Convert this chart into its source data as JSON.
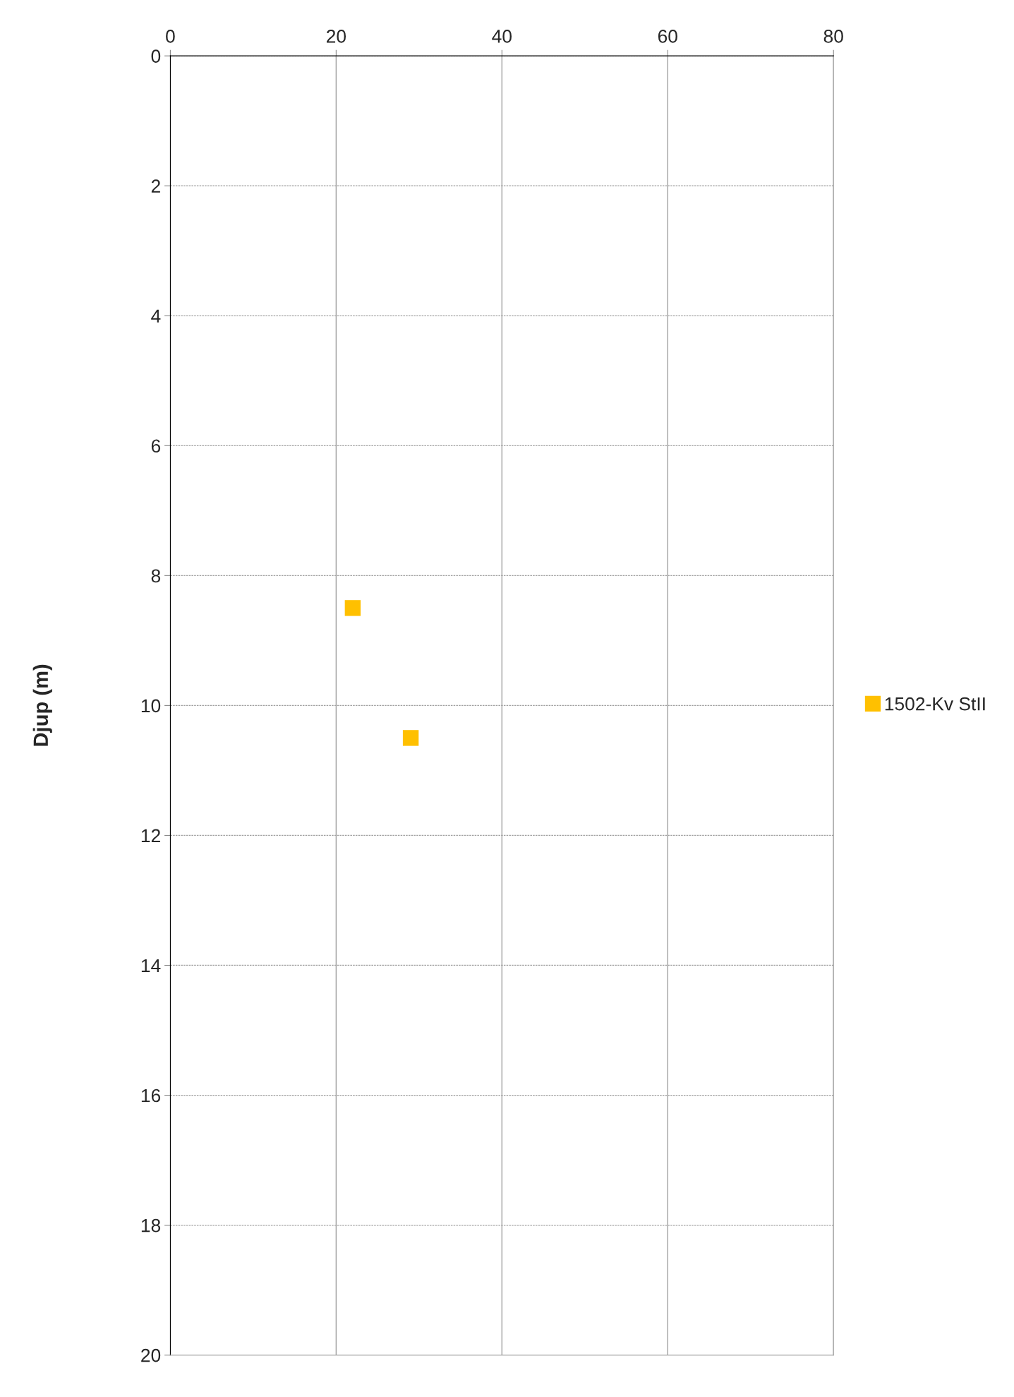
{
  "chart_data": {
    "type": "scatter",
    "ylabel": "Djup (m)",
    "series": [
      {
        "name": "1502-Kv StII",
        "color": "#ffc000",
        "x": [
          22,
          29
        ],
        "values": [
          8.5,
          10.5
        ]
      }
    ],
    "xlim": [
      0,
      80
    ],
    "xticks": [
      0,
      20,
      40,
      60,
      80
    ],
    "ylim": [
      20,
      0
    ],
    "yticks": [
      0,
      2,
      4,
      6,
      8,
      10,
      12,
      14,
      16,
      18,
      20
    ],
    "grid": true,
    "legend": "right",
    "marker": "square"
  }
}
